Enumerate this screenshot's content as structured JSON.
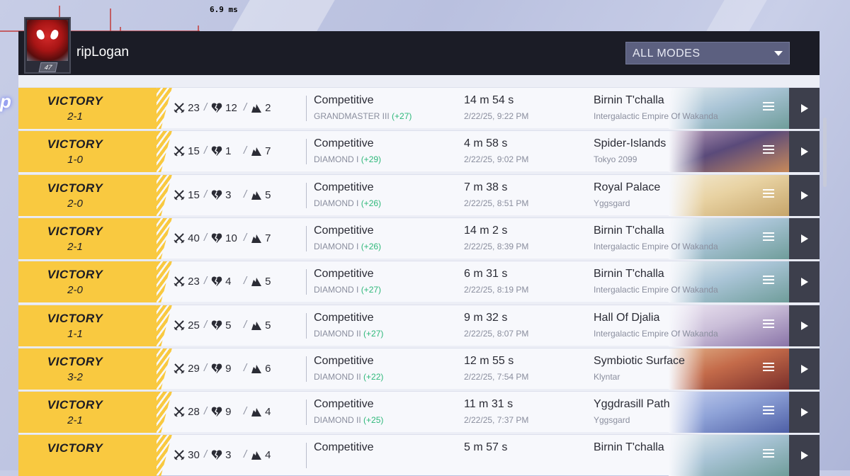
{
  "perf": {
    "label": "6.9 ms"
  },
  "header": {
    "username": "ripLogan",
    "level": "47",
    "mode_filter": "ALL MODES"
  },
  "matches": [
    {
      "result": "VICTORY",
      "score": "2-1",
      "kills": "23",
      "deaths": "12",
      "assists": "2",
      "mode": "Competitive",
      "rank": "GRANDMASTER III",
      "gain": "(+27)",
      "duration": "14 m 54 s",
      "datetime": "2/22/25, 9:22 PM",
      "map": "Birnin T'challa",
      "region": "Intergalactic Empire Of Wakanda",
      "thumb": "wakanda"
    },
    {
      "result": "VICTORY",
      "score": "1-0",
      "kills": "15",
      "deaths": "1",
      "assists": "7",
      "mode": "Competitive",
      "rank": "DIAMOND I",
      "gain": "(+29)",
      "duration": "4 m 58 s",
      "datetime": "2/22/25, 9:02 PM",
      "map": "Spider-Islands",
      "region": "Tokyo 2099",
      "thumb": "tokyo"
    },
    {
      "result": "VICTORY",
      "score": "2-0",
      "kills": "15",
      "deaths": "3",
      "assists": "5",
      "mode": "Competitive",
      "rank": "DIAMOND I",
      "gain": "(+26)",
      "duration": "7 m 38 s",
      "datetime": "2/22/25, 8:51 PM",
      "map": "Royal Palace",
      "region": "Yggsgard",
      "thumb": "palace"
    },
    {
      "result": "VICTORY",
      "score": "2-1",
      "kills": "40",
      "deaths": "10",
      "assists": "7",
      "mode": "Competitive",
      "rank": "DIAMOND I",
      "gain": "(+26)",
      "duration": "14 m 2 s",
      "datetime": "2/22/25, 8:39 PM",
      "map": "Birnin T'challa",
      "region": "Intergalactic Empire Of Wakanda",
      "thumb": "wakanda"
    },
    {
      "result": "VICTORY",
      "score": "2-0",
      "kills": "23",
      "deaths": "4",
      "assists": "5",
      "mode": "Competitive",
      "rank": "DIAMOND I",
      "gain": "(+27)",
      "duration": "6 m 31 s",
      "datetime": "2/22/25, 8:19 PM",
      "map": "Birnin T'challa",
      "region": "Intergalactic Empire Of Wakanda",
      "thumb": "wakanda"
    },
    {
      "result": "VICTORY",
      "score": "1-1",
      "kills": "25",
      "deaths": "5",
      "assists": "5",
      "mode": "Competitive",
      "rank": "DIAMOND II",
      "gain": "(+27)",
      "duration": "9 m 32 s",
      "datetime": "2/22/25, 8:07 PM",
      "map": "Hall Of Djalia",
      "region": "Intergalactic Empire Of Wakanda",
      "thumb": "djalia"
    },
    {
      "result": "VICTORY",
      "score": "3-2",
      "kills": "29",
      "deaths": "9",
      "assists": "6",
      "mode": "Competitive",
      "rank": "DIAMOND II",
      "gain": "(+22)",
      "duration": "12 m 55 s",
      "datetime": "2/22/25, 7:54 PM",
      "map": "Symbiotic Surface",
      "region": "Klyntar",
      "thumb": "klyntar"
    },
    {
      "result": "VICTORY",
      "score": "2-1",
      "kills": "28",
      "deaths": "9",
      "assists": "4",
      "mode": "Competitive",
      "rank": "DIAMOND II",
      "gain": "(+25)",
      "duration": "11 m 31 s",
      "datetime": "2/22/25, 7:37 PM",
      "map": "Yggdrasill Path",
      "region": "Yggsgard",
      "thumb": "yggdrasill"
    },
    {
      "result": "VICTORY",
      "score": "",
      "kills": "30",
      "deaths": "3",
      "assists": "4",
      "mode": "Competitive",
      "rank": "",
      "gain": "",
      "duration": "5 m 57 s",
      "datetime": "",
      "map": "Birnin T'challa",
      "region": "",
      "thumb": "wakanda"
    }
  ],
  "colors": {
    "victory": "#f9c940",
    "header_bg": "#1b1c26",
    "rank_gain": "#2eb87a",
    "play_button": "#3d3f4c"
  },
  "thumb_colors": {
    "wakanda": [
      "#a9c4d6",
      "#6f9d9a",
      "#e4ecef"
    ],
    "tokyo": [
      "#5a4a7a",
      "#c7895a",
      "#b79ab9"
    ],
    "palace": [
      "#e8d2a2",
      "#c6a56a",
      "#f3ead3"
    ],
    "djalia": [
      "#cbbfd9",
      "#8a74a8",
      "#efe7f3"
    ],
    "klyntar": [
      "#c46b4a",
      "#7a2e2a",
      "#e2b38a"
    ],
    "yggdrasill": [
      "#8fa3d8",
      "#4e5fa6",
      "#c6d0ef"
    ]
  }
}
